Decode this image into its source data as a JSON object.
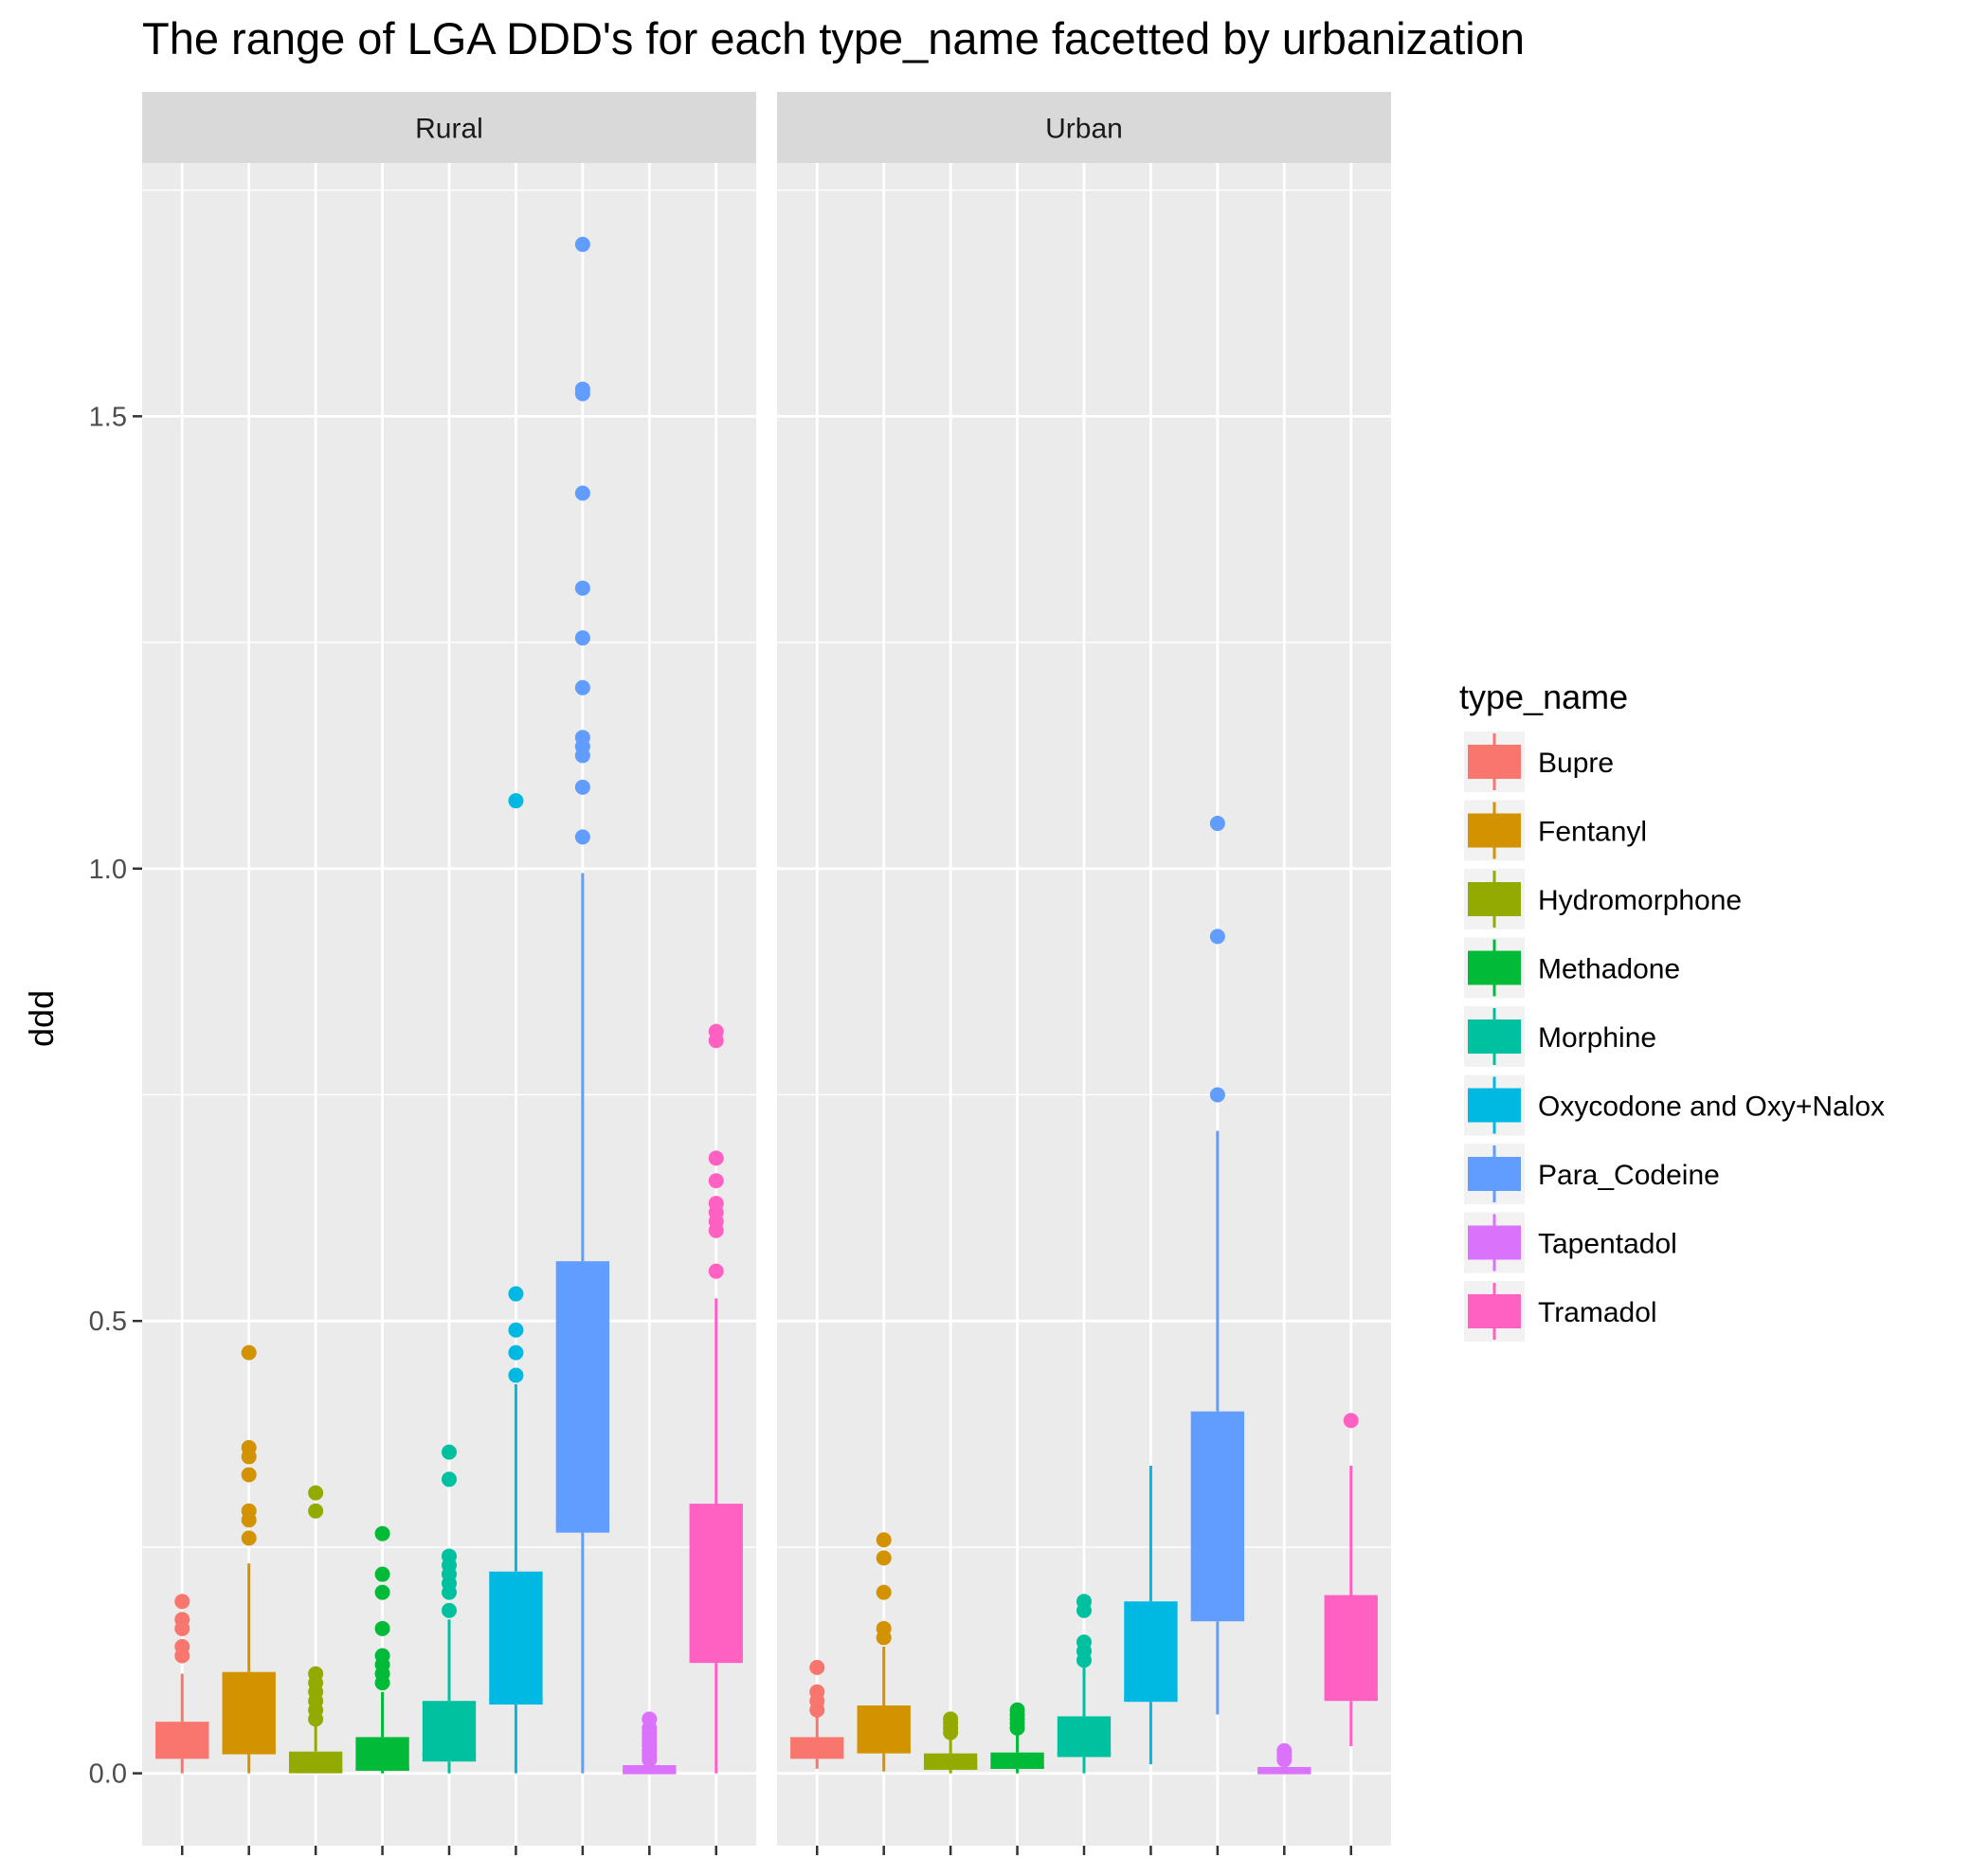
{
  "chart_data": {
    "type": "boxplot",
    "title": "The range of LGA DDD's for each type_name facetted by urbanization",
    "ylabel": "ddd",
    "xlabel": "",
    "ylim": [
      -0.08,
      1.78
    ],
    "yticks": [
      0.0,
      0.5,
      1.0,
      1.5
    ],
    "ytick_labels": [
      "0.0",
      "0.5",
      "1.0",
      "1.5"
    ],
    "x_tick_labels_rendered": false,
    "legend": {
      "title": "type_name",
      "position": "right",
      "entries": [
        "Bupre",
        "Fentanyl",
        "Hydromorphone",
        "Methadone",
        "Morphine",
        "Oxycodone and Oxy+Nalox",
        "Para_Codeine",
        "Tapentadol",
        "Tramadol"
      ]
    },
    "colors": {
      "Bupre": "#F8766D",
      "Fentanyl": "#D39200",
      "Hydromorphone": "#93AA00",
      "Methadone": "#00BA38",
      "Morphine": "#00C19F",
      "Oxycodone and Oxy+Nalox": "#00B9E3",
      "Para_Codeine": "#619CFF",
      "Tapentadol": "#DB72FB",
      "Tramadol": "#FF61C3"
    },
    "facets": [
      {
        "name": "Rural",
        "boxes": [
          {
            "type_name": "Bupre",
            "whisker_low": 0.0,
            "q1": 0.016,
            "median": 0.02,
            "q3": 0.057,
            "whisker_high": 0.11,
            "outliers": [
              0.13,
              0.14,
              0.16,
              0.17,
              0.19
            ]
          },
          {
            "type_name": "Fentanyl",
            "whisker_low": 0.0,
            "q1": 0.021,
            "median": 0.025,
            "q3": 0.112,
            "whisker_high": 0.232,
            "outliers": [
              0.26,
              0.28,
              0.29,
              0.33,
              0.35,
              0.36,
              0.465
            ]
          },
          {
            "type_name": "Hydromorphone",
            "whisker_low": 0.0,
            "q1": 0.0,
            "median": 0.003,
            "q3": 0.024,
            "whisker_high": 0.052,
            "outliers": [
              0.06,
              0.07,
              0.08,
              0.09,
              0.1,
              0.11,
              0.29,
              0.31
            ]
          },
          {
            "type_name": "Methadone",
            "whisker_low": 0.0,
            "q1": 0.003,
            "median": 0.005,
            "q3": 0.04,
            "whisker_high": 0.09,
            "outliers": [
              0.1,
              0.11,
              0.12,
              0.13,
              0.16,
              0.2,
              0.22,
              0.265
            ]
          },
          {
            "type_name": "Morphine",
            "whisker_low": 0.0,
            "q1": 0.013,
            "median": 0.02,
            "q3": 0.08,
            "whisker_high": 0.17,
            "outliers": [
              0.18,
              0.2,
              0.21,
              0.22,
              0.23,
              0.24,
              0.325,
              0.355
            ]
          },
          {
            "type_name": "Oxycodone and Oxy+Nalox",
            "whisker_low": 0.0,
            "q1": 0.076,
            "median": 0.082,
            "q3": 0.223,
            "whisker_high": 0.43,
            "outliers": [
              0.44,
              0.465,
              0.49,
              0.53,
              1.075
            ]
          },
          {
            "type_name": "Para_Codeine",
            "whisker_low": 0.0,
            "q1": 0.266,
            "median": 0.276,
            "q3": 0.566,
            "whisker_high": 0.995,
            "outliers": [
              1.035,
              1.09,
              1.125,
              1.135,
              1.145,
              1.2,
              1.255,
              1.31,
              1.415,
              1.525,
              1.53,
              1.69
            ]
          },
          {
            "type_name": "Tapentadol",
            "whisker_low": 0.0,
            "q1": 0.0,
            "median": 0.001,
            "q3": 0.009,
            "whisker_high": 0.012,
            "outliers": [
              0.015,
              0.02,
              0.025,
              0.03,
              0.035,
              0.04,
              0.045,
              0.05,
              0.06
            ]
          },
          {
            "type_name": "Tramadol",
            "whisker_low": 0.0,
            "q1": 0.122,
            "median": 0.13,
            "q3": 0.298,
            "whisker_high": 0.525,
            "outliers": [
              0.555,
              0.6,
              0.61,
              0.62,
              0.63,
              0.655,
              0.68,
              0.81,
              0.82
            ]
          }
        ]
      },
      {
        "name": "Urban",
        "boxes": [
          {
            "type_name": "Bupre",
            "whisker_low": 0.005,
            "q1": 0.016,
            "median": 0.02,
            "q3": 0.04,
            "whisker_high": 0.065,
            "outliers": [
              0.07,
              0.08,
              0.09,
              0.117
            ]
          },
          {
            "type_name": "Fentanyl",
            "whisker_low": 0.002,
            "q1": 0.022,
            "median": 0.026,
            "q3": 0.075,
            "whisker_high": 0.14,
            "outliers": [
              0.15,
              0.16,
              0.2,
              0.238,
              0.258
            ]
          },
          {
            "type_name": "Hydromorphone",
            "whisker_low": 0.0,
            "q1": 0.004,
            "median": 0.006,
            "q3": 0.022,
            "whisker_high": 0.04,
            "outliers": [
              0.045,
              0.05,
              0.055,
              0.06
            ]
          },
          {
            "type_name": "Methadone",
            "whisker_low": 0.0,
            "q1": 0.005,
            "median": 0.007,
            "q3": 0.023,
            "whisker_high": 0.045,
            "outliers": [
              0.05,
              0.055,
              0.06,
              0.065,
              0.07
            ]
          },
          {
            "type_name": "Morphine",
            "whisker_low": 0.0,
            "q1": 0.018,
            "median": 0.022,
            "q3": 0.063,
            "whisker_high": 0.12,
            "outliers": [
              0.125,
              0.135,
              0.145,
              0.18,
              0.19
            ]
          },
          {
            "type_name": "Oxycodone and Oxy+Nalox",
            "whisker_low": 0.01,
            "q1": 0.079,
            "median": 0.083,
            "q3": 0.19,
            "whisker_high": 0.34,
            "outliers": []
          },
          {
            "type_name": "Para_Codeine",
            "whisker_low": 0.065,
            "q1": 0.168,
            "median": 0.175,
            "q3": 0.4,
            "whisker_high": 0.71,
            "outliers": [
              0.75,
              0.925,
              1.05
            ]
          },
          {
            "type_name": "Tapentadol",
            "whisker_low": 0.0,
            "q1": 0.0,
            "median": 0.001,
            "q3": 0.007,
            "whisker_high": 0.01,
            "outliers": [
              0.015,
              0.02,
              0.025
            ]
          },
          {
            "type_name": "Tramadol",
            "whisker_low": 0.03,
            "q1": 0.08,
            "median": 0.085,
            "q3": 0.197,
            "whisker_high": 0.34,
            "outliers": [
              0.39
            ]
          }
        ]
      }
    ]
  }
}
